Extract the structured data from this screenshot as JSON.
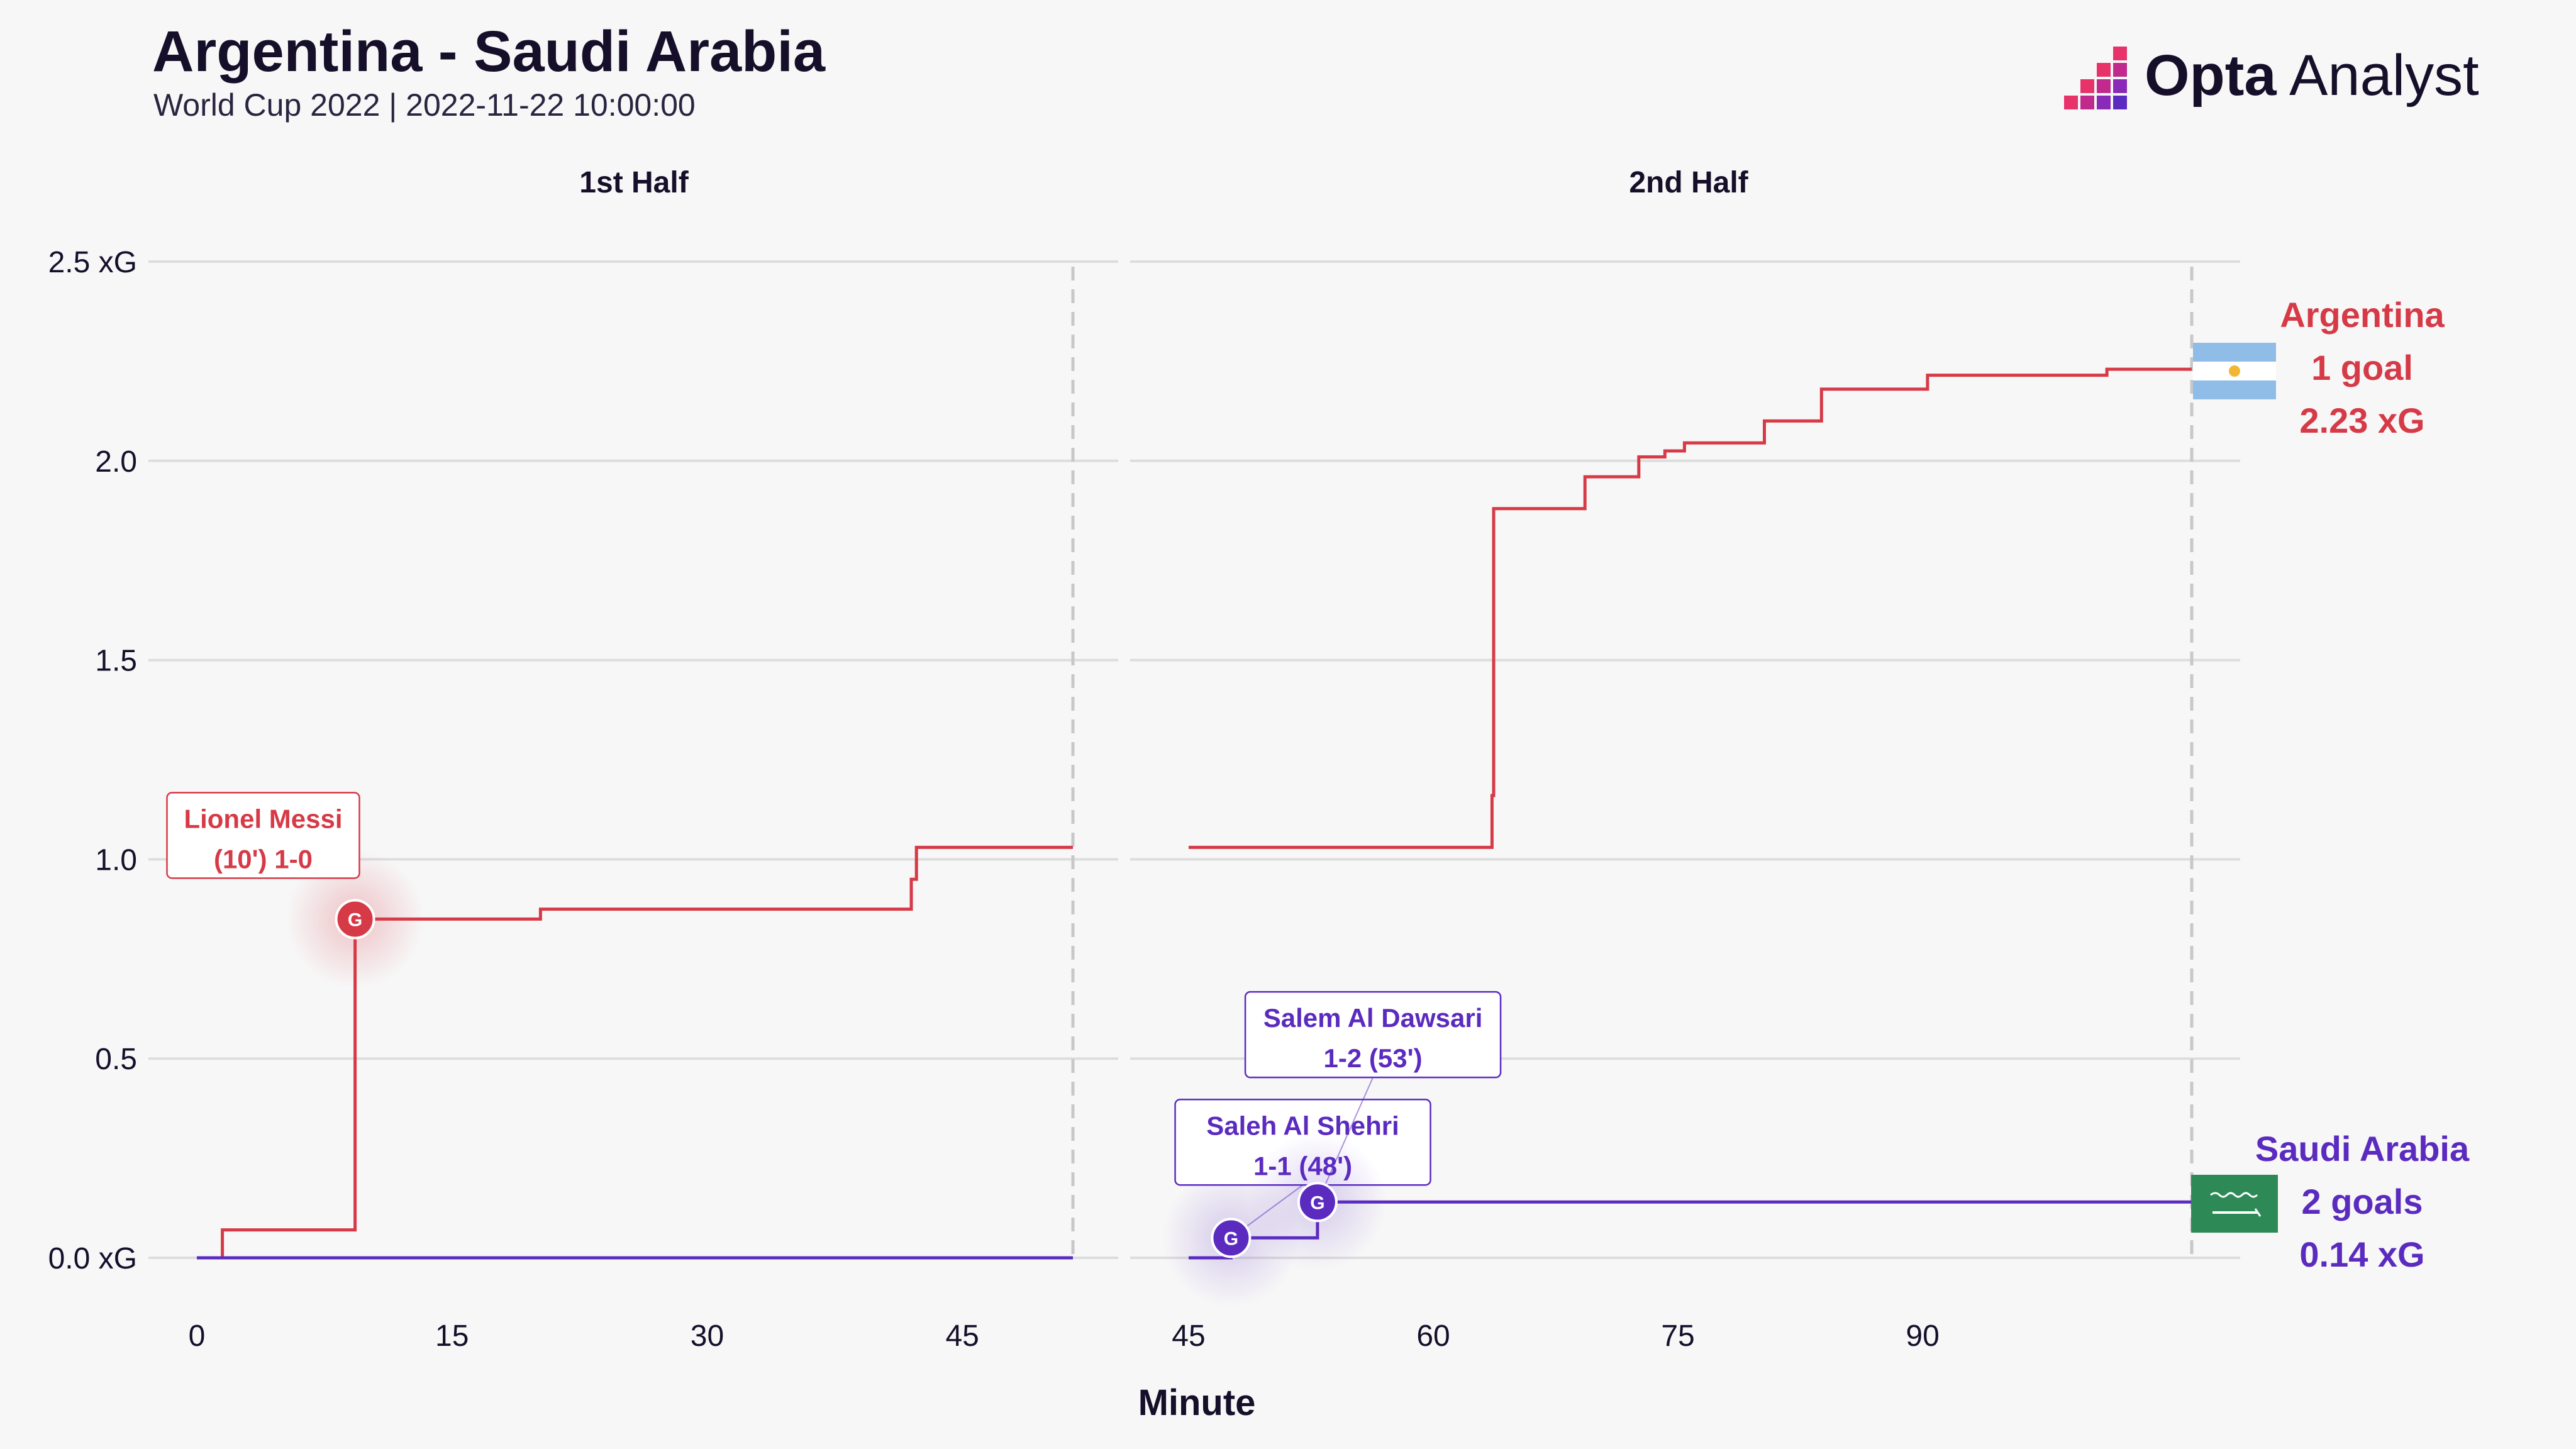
{
  "header": {
    "title": "Argentina - Saudi Arabia",
    "subtitle": "World Cup 2022 | 2022-11-22 10:00:00"
  },
  "brand": {
    "name_bold": "Opta",
    "name_regular": " Analyst"
  },
  "colors": {
    "argentina": "#d63a47",
    "saudi": "#5b2bc0",
    "background": "#f7f7f7",
    "grid": "#dddddd"
  },
  "chart_data": {
    "type": "line",
    "step": true,
    "xlabel": "Minute",
    "panels": [
      {
        "label": "1st Half",
        "xlim": [
          0,
          51.5
        ],
        "xticks": [
          0,
          15,
          30,
          45
        ],
        "end_minute": 51.5
      },
      {
        "label": "2nd Half",
        "xlim": [
          45,
          106.5
        ],
        "xticks": [
          45,
          60,
          75,
          90
        ],
        "end_minute": 106.5
      }
    ],
    "ylim": [
      0,
      2.5
    ],
    "yticks": [
      {
        "value": 0,
        "label": "0.0 xG"
      },
      {
        "value": 0.5,
        "label": "0.5"
      },
      {
        "value": 1.0,
        "label": "1.0"
      },
      {
        "value": 1.5,
        "label": "1.5"
      },
      {
        "value": 2.0,
        "label": "2.0"
      },
      {
        "value": 2.5,
        "label": "2.5 xG"
      }
    ],
    "grid": true,
    "series": [
      {
        "name": "Argentina",
        "color": "#d63a47",
        "goals_label": "1 goal",
        "xg_label": "2.23 xG",
        "flag": "argentina-flag",
        "first_half": [
          [
            0,
            0
          ],
          [
            1.5,
            0
          ],
          [
            1.5,
            0.07
          ],
          [
            9.3,
            0.07
          ],
          [
            9.3,
            0.85
          ],
          [
            20.2,
            0.85
          ],
          [
            20.2,
            0.875
          ],
          [
            42,
            0.875
          ],
          [
            42,
            0.95
          ],
          [
            42.3,
            0.95
          ],
          [
            42.3,
            1.03
          ],
          [
            51.5,
            1.03
          ]
        ],
        "second_half": [
          [
            45,
            1.03
          ],
          [
            63.6,
            1.03
          ],
          [
            63.6,
            1.16
          ],
          [
            63.7,
            1.16
          ],
          [
            63.7,
            1.88
          ],
          [
            69.3,
            1.88
          ],
          [
            69.3,
            1.96
          ],
          [
            72.6,
            1.96
          ],
          [
            72.6,
            2.01
          ],
          [
            74.2,
            2.01
          ],
          [
            74.2,
            2.025
          ],
          [
            75.4,
            2.025
          ],
          [
            75.4,
            2.045
          ],
          [
            80.3,
            2.045
          ],
          [
            80.3,
            2.1
          ],
          [
            83.8,
            2.1
          ],
          [
            83.8,
            2.18
          ],
          [
            90.3,
            2.18
          ],
          [
            90.3,
            2.215
          ],
          [
            101.3,
            2.215
          ],
          [
            101.3,
            2.23
          ],
          [
            106.5,
            2.23
          ]
        ]
      },
      {
        "name": "Saudi Arabia",
        "color": "#5b2bc0",
        "goals_label": "2 goals",
        "xg_label": "0.14 xG",
        "flag": "saudi-arabia-flag",
        "first_half": [
          [
            0,
            0
          ],
          [
            51.5,
            0
          ]
        ],
        "second_half": [
          [
            45,
            0
          ],
          [
            47.6,
            0
          ],
          [
            47.6,
            0.05
          ],
          [
            52.9,
            0.05
          ],
          [
            52.9,
            0.14
          ],
          [
            106.5,
            0.14
          ]
        ]
      }
    ],
    "goals": [
      {
        "team": "Argentina",
        "panel": 0,
        "minute": 9.3,
        "y": 0.85,
        "marker": "G",
        "label_line1": "Lionel Messi",
        "label_line2": "(10') 1-0",
        "label_x": 3.9,
        "label_y": 1.06,
        "highlight": true
      },
      {
        "team": "Saudi Arabia",
        "panel": 1,
        "minute": 47.6,
        "y": 0.05,
        "marker": "G",
        "label_line1": "Saleh Al Shehri",
        "label_line2": "1-1 (48')",
        "label_x": 52.0,
        "label_y": 0.29
      },
      {
        "team": "Saudi Arabia",
        "panel": 1,
        "minute": 52.9,
        "y": 0.14,
        "marker": "G",
        "label_line1": "Salem Al Dawsari",
        "label_line2": "1-2 (53')",
        "label_x": 56.3,
        "label_y": 0.56
      }
    ]
  }
}
